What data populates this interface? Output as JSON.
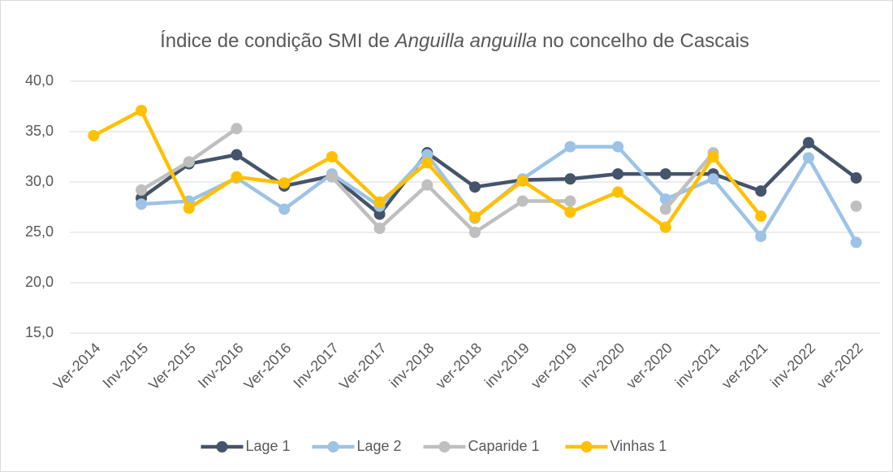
{
  "chart_data": {
    "type": "line",
    "title": [
      "Índice de condição SMI de",
      "Anguilla anguilla",
      "no concelho de Cascais"
    ],
    "categories": [
      "Ver-2014",
      "Inv-2015",
      "Ver-2015",
      "Inv-2016",
      "Ver-2016",
      "Inv-2017",
      "Ver-2017",
      "inv-2018",
      "ver-2018",
      "inv-2019",
      "ver-2019",
      "inv-2020",
      "ver-2020",
      "inv-2021",
      "ver-2021",
      "inv-2022",
      "ver-2022"
    ],
    "series": [
      {
        "name": "Lage 1",
        "color": "#44546a",
        "values": [
          null,
          28.4,
          31.8,
          32.7,
          29.6,
          30.6,
          26.8,
          32.9,
          29.5,
          30.2,
          30.3,
          30.8,
          30.8,
          30.8,
          29.1,
          33.9,
          30.4
        ]
      },
      {
        "name": "Lage 2",
        "color": "#9dc3e6",
        "values": [
          null,
          27.8,
          28.1,
          30.4,
          27.3,
          30.8,
          27.6,
          32.7,
          26.4,
          30.3,
          33.5,
          33.5,
          28.3,
          30.3,
          24.6,
          32.4,
          24.0
        ]
      },
      {
        "name": "Caparide 1",
        "color": "#bfbfbf",
        "values": [
          null,
          29.2,
          32.0,
          35.3,
          null,
          30.5,
          25.4,
          29.7,
          25.0,
          28.1,
          28.1,
          null,
          27.3,
          32.9,
          null,
          null,
          27.6
        ]
      },
      {
        "name": "Vinhas 1",
        "color": "#ffc000",
        "values": [
          34.6,
          37.1,
          27.4,
          30.5,
          29.9,
          32.5,
          28.0,
          31.9,
          26.5,
          30.1,
          27.0,
          29.0,
          25.5,
          32.5,
          26.6,
          null,
          null
        ]
      }
    ],
    "ylim": [
      15,
      40
    ],
    "yticks": [
      {
        "value": 15,
        "label": "15,0"
      },
      {
        "value": 20,
        "label": "20,0"
      },
      {
        "value": 25,
        "label": "25,0"
      },
      {
        "value": 30,
        "label": "30,0"
      },
      {
        "value": 35,
        "label": "35,0"
      },
      {
        "value": 40,
        "label": "40,0"
      }
    ],
    "grid": true,
    "legend": "bottom"
  }
}
